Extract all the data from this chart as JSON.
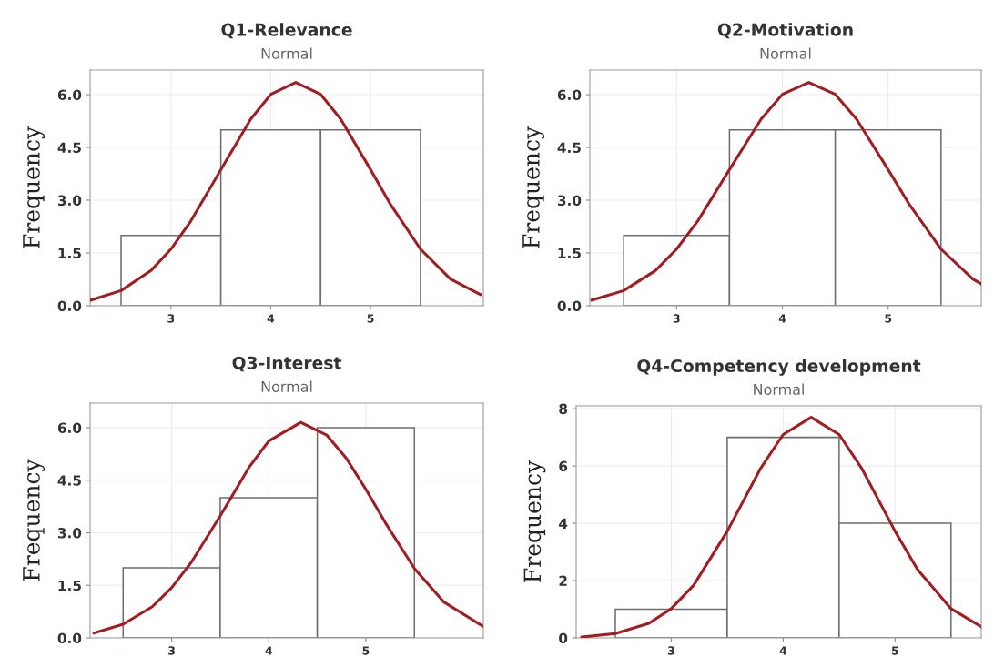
{
  "chart_data": [
    {
      "type": "histogram",
      "title": "Q1-Relevance",
      "subtitle": "Normal",
      "ylabel": "Frequency",
      "bins": [
        2.5,
        3.5,
        4.5,
        5.5
      ],
      "values": [
        2,
        5,
        5
      ],
      "color": "#ffffff",
      "xlim": [
        2.19,
        6.13
      ],
      "xticks": [
        3,
        4,
        5
      ],
      "ylim": [
        0,
        6.7
      ],
      "yticks": [
        {
          "value": 0,
          "label": "0.0"
        },
        {
          "value": 1.5,
          "label": "1.5"
        },
        {
          "value": 3,
          "label": "3.0"
        },
        {
          "value": 4.5,
          "label": "4.5"
        },
        {
          "value": 6,
          "label": "6.0"
        }
      ],
      "grid": true,
      "series": [
        {
          "type": "line",
          "color": "#a11d21",
          "x": [
            2.2,
            2.5,
            2.8,
            3.0,
            3.2,
            3.5,
            3.8,
            4.0,
            4.25,
            4.5,
            4.7,
            5.0,
            5.2,
            5.5,
            5.8,
            6.1
          ],
          "values": [
            0.16,
            0.43,
            1.0,
            1.61,
            2.41,
            3.87,
            5.31,
            6.01,
            6.35,
            6.01,
            5.31,
            3.87,
            2.88,
            1.61,
            0.76,
            0.32
          ]
        }
      ]
    },
    {
      "type": "histogram",
      "title": "Q2-Motivation",
      "subtitle": "Normal",
      "ylabel": "Frequency",
      "bins": [
        2.5,
        3.5,
        4.5,
        5.5
      ],
      "values": [
        2,
        5,
        5
      ],
      "color": "#ffffff",
      "xlim": [
        2.18,
        5.88
      ],
      "xticks": [
        3,
        4,
        5
      ],
      "ylim": [
        0,
        6.7
      ],
      "yticks": [
        {
          "value": 0,
          "label": "0.0"
        },
        {
          "value": 1.5,
          "label": "1.5"
        },
        {
          "value": 3,
          "label": "3.0"
        },
        {
          "value": 4.5,
          "label": "4.5"
        },
        {
          "value": 6,
          "label": "6.0"
        }
      ],
      "grid": true,
      "series": [
        {
          "type": "line",
          "color": "#a11d21",
          "x": [
            2.2,
            2.5,
            2.8,
            3.0,
            3.2,
            3.5,
            3.8,
            4.0,
            4.25,
            4.5,
            4.7,
            5.0,
            5.2,
            5.5,
            5.8,
            5.88
          ],
          "values": [
            0.16,
            0.43,
            1.0,
            1.61,
            2.41,
            3.87,
            5.31,
            6.01,
            6.35,
            6.01,
            5.31,
            3.87,
            2.88,
            1.61,
            0.76,
            0.62
          ]
        }
      ]
    },
    {
      "type": "histogram",
      "title": "Q3-Interest",
      "subtitle": "Normal",
      "ylabel": "Frequency",
      "bins": [
        2.5,
        3.5,
        4.5,
        5.5
      ],
      "values": [
        2,
        4,
        6
      ],
      "color": "#ffffff",
      "xlim": [
        2.16,
        6.21
      ],
      "xticks": [
        3,
        4,
        5
      ],
      "ylim": [
        0,
        6.7
      ],
      "yticks": [
        {
          "value": 0,
          "label": "0.0"
        },
        {
          "value": 1.5,
          "label": "1.5"
        },
        {
          "value": 3,
          "label": "3.0"
        },
        {
          "value": 4.5,
          "label": "4.5"
        },
        {
          "value": 6,
          "label": "6.0"
        }
      ],
      "grid": true,
      "series": [
        {
          "type": "line",
          "color": "#a11d21",
          "x": [
            2.2,
            2.5,
            2.8,
            3.0,
            3.2,
            3.5,
            3.8,
            4.0,
            4.33,
            4.6,
            4.8,
            5.0,
            5.2,
            5.5,
            5.8,
            6.2
          ],
          "values": [
            0.14,
            0.39,
            0.89,
            1.43,
            2.15,
            3.48,
            4.88,
            5.62,
            6.15,
            5.78,
            5.12,
            4.24,
            3.29,
            1.98,
            1.03,
            0.34
          ]
        }
      ]
    },
    {
      "type": "histogram",
      "title": "Q4-Competency development",
      "subtitle": "Normal",
      "ylabel": "Frequency",
      "bins": [
        2.5,
        3.5,
        4.5,
        5.5
      ],
      "values": [
        1,
        7,
        4
      ],
      "color": "#ffffff",
      "xlim": [
        2.15,
        5.77
      ],
      "xticks": [
        3,
        4,
        5
      ],
      "ylim": [
        0,
        8.1
      ],
      "yticks": [
        0,
        2,
        4,
        6,
        8
      ],
      "grid": true,
      "series": [
        {
          "type": "line",
          "color": "#a11d21",
          "x": [
            2.2,
            2.5,
            2.8,
            3.0,
            3.2,
            3.5,
            3.8,
            4.0,
            4.25,
            4.5,
            4.7,
            5.0,
            5.2,
            5.5,
            5.77
          ],
          "values": [
            0.03,
            0.15,
            0.51,
            1.02,
            1.84,
            3.72,
            5.93,
            7.1,
            7.7,
            7.1,
            5.93,
            3.72,
            2.39,
            1.02,
            0.39
          ]
        }
      ]
    }
  ]
}
